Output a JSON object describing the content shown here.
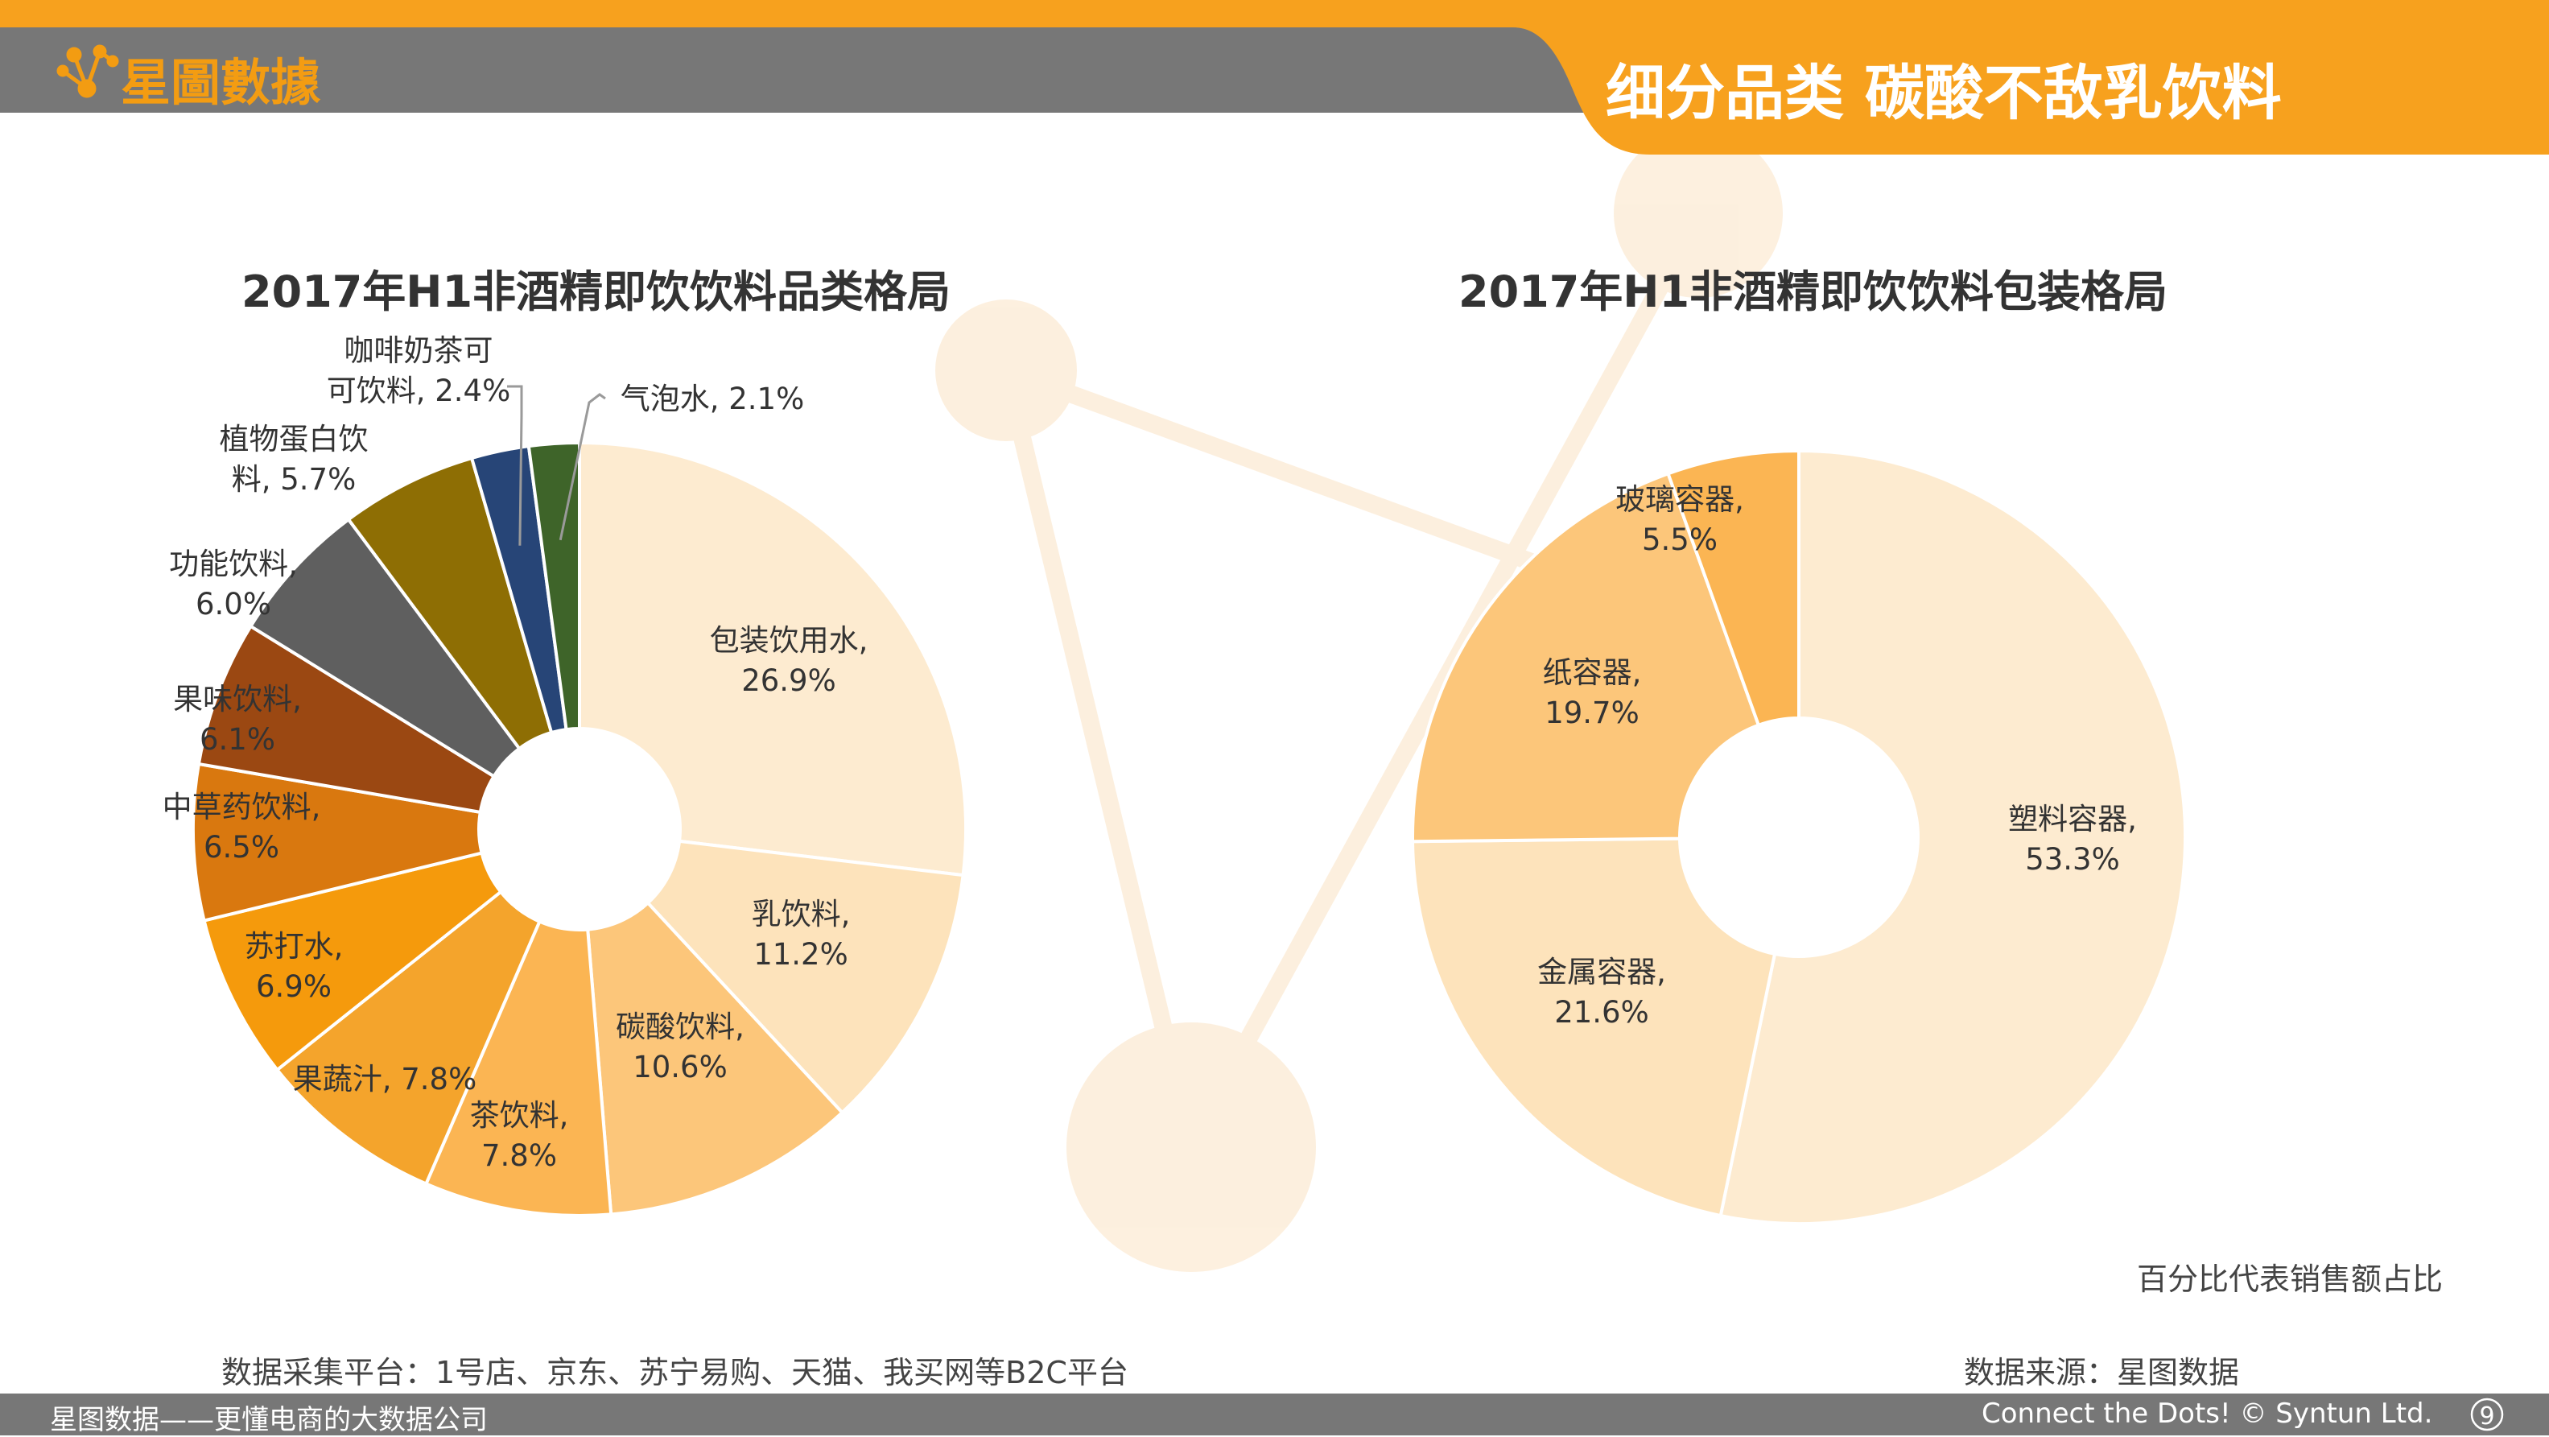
{
  "header": {
    "logo_text": "星圖數據",
    "banner_title": "细分品类 碳酸不敌乳饮料"
  },
  "notes": {
    "percent_note": "百分比代表销售额占比",
    "collection_platform": "数据采集平台：1号店、京东、苏宁易购、天猫、我买网等B2C平台",
    "data_source": "数据来源：星图数据"
  },
  "footer": {
    "left_text": "星图数据——更懂电商的大数据公司",
    "right_text": "Connect the Dots! © Syntun Ltd.",
    "page_number": "9"
  },
  "colors": {
    "orange": "#f7a11e",
    "gray_bar": "#777777",
    "logo": "#f39c12"
  },
  "chart_data": [
    {
      "type": "pie",
      "title": "2017年H1非酒精即饮饮料品类格局",
      "series": [
        {
          "label": "包装饮用水",
          "value": 26.9,
          "text": "包装饮用水,\n26.9%",
          "color": "#fdebd0"
        },
        {
          "label": "乳饮料",
          "value": 11.2,
          "text": "乳饮料,\n11.2%",
          "color": "#fde3bb"
        },
        {
          "label": "碳酸饮料",
          "value": 10.6,
          "text": "碳酸饮料,\n10.6%",
          "color": "#fcc67a"
        },
        {
          "label": "茶饮料",
          "value": 7.8,
          "text": "茶饮料,\n7.8%",
          "color": "#fbb553"
        },
        {
          "label": "果蔬汁",
          "value": 7.8,
          "text": "果蔬汁, 7.8%",
          "color": "#f4a42c"
        },
        {
          "label": "苏打水",
          "value": 6.9,
          "text": "苏打水,\n6.9%",
          "color": "#f59a0c"
        },
        {
          "label": "中草药饮料",
          "value": 6.5,
          "text": "中草药饮料,\n6.5%",
          "color": "#d9780f"
        },
        {
          "label": "果味饮料",
          "value": 6.1,
          "text": "果味饮料,\n6.1%",
          "color": "#9b4812"
        },
        {
          "label": "功能饮料",
          "value": 6.0,
          "text": "功能饮料,\n6.0%",
          "color": "#5f5f5f"
        },
        {
          "label": "植物蛋白饮料",
          "value": 5.7,
          "text": "植物蛋白饮\n料, 5.7%",
          "color": "#8e6e04"
        },
        {
          "label": "咖啡奶茶可可饮料",
          "value": 2.4,
          "text": "咖啡奶茶可\n可饮料, 2.4%",
          "color": "#274577"
        },
        {
          "label": "气泡水",
          "value": 2.1,
          "text": "气泡水, 2.1%",
          "color": "#3e6429"
        }
      ]
    },
    {
      "type": "pie",
      "title": "2017年H1非酒精即饮饮料包装格局",
      "series": [
        {
          "label": "塑料容器",
          "value": 53.3,
          "text": "塑料容器,\n53.3%",
          "color": "#fdebd0"
        },
        {
          "label": "金属容器",
          "value": 21.6,
          "text": "金属容器,\n21.6%",
          "color": "#fde3bb"
        },
        {
          "label": "纸容器",
          "value": 19.7,
          "text": "纸容器,\n19.7%",
          "color": "#fcc67a"
        },
        {
          "label": "玻璃容器",
          "value": 5.5,
          "text": "玻璃容器,\n5.5%",
          "color": "#fbb553"
        }
      ]
    }
  ]
}
